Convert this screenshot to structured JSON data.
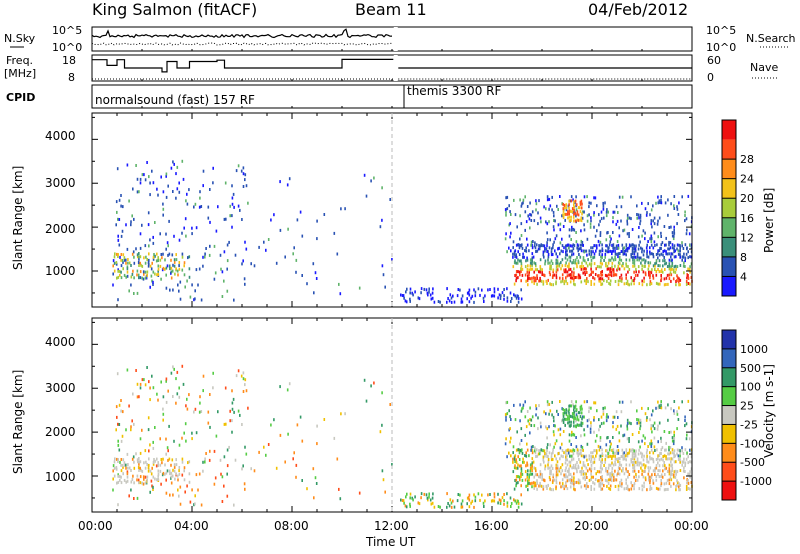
{
  "header": {
    "station": "King Salmon (fitACF)",
    "beam": "Beam 11",
    "date": "04/Feb/2012"
  },
  "aux_panels": {
    "nsky_label": "N.Sky",
    "nsky_ticks": [
      "10^5",
      "10^0"
    ],
    "nsearch_label": "N.Search",
    "nsearch_ticks": [
      "10^5",
      "10^0"
    ],
    "freq_label": "Freq.",
    "freq_unit": "[MHz]",
    "freq_ticks": [
      "18",
      "8"
    ],
    "nave_label": "Nave",
    "nave_ticks": [
      "60",
      "0"
    ],
    "cpid_label": "CPID",
    "cpid_segments": [
      {
        "label": "normalsound (fast) 157 RF",
        "start_hour": 0,
        "end_hour": 12.05
      },
      {
        "label": "themis 3300 RF",
        "start_hour": 12.25,
        "end_hour": 24
      }
    ],
    "freq_steps": [
      {
        "h": 0.0,
        "f": 16.2
      },
      {
        "h": 0.6,
        "f": 14.0
      },
      {
        "h": 1.0,
        "f": 16.2
      },
      {
        "h": 1.3,
        "f": 13.0
      },
      {
        "h": 2.8,
        "f": 11.5
      },
      {
        "h": 3.0,
        "f": 15.5
      },
      {
        "h": 3.4,
        "f": 13.0
      },
      {
        "h": 3.9,
        "f": 15.5
      },
      {
        "h": 5.0,
        "f": 16.0
      },
      {
        "h": 5.3,
        "f": 13.0
      },
      {
        "h": 10.0,
        "f": 16.3
      },
      {
        "h": 12.05,
        "f": null
      },
      {
        "h": 12.25,
        "f": 13.0
      },
      {
        "h": 24.0,
        "f": 13.0
      }
    ]
  },
  "panels": [
    {
      "id": "power",
      "ylabel": "Slant Range [km]",
      "yticks": [
        "1000",
        "2000",
        "3000",
        "4000"
      ],
      "colorbar_label": "Power [dB]",
      "colorbar_ticks": [
        "4",
        "8",
        "12",
        "16",
        "20",
        "24",
        "28"
      ],
      "colors": [
        "#1a1aff",
        "#2952b3",
        "#3a8f7a",
        "#5fb36a",
        "#a8cc3a",
        "#f2c21a",
        "#ff8c1a",
        "#ff4d1a",
        "#ee1010"
      ]
    },
    {
      "id": "velocity",
      "ylabel": "Slant Range [km]",
      "yticks": [
        "1000",
        "2000",
        "3000",
        "4000"
      ],
      "colorbar_label": "Velocity [m s-1]",
      "colorbar_ticks": [
        "1000",
        "500",
        "100",
        "25",
        "-25",
        "-100",
        "-500",
        "-1000"
      ],
      "colors": [
        "#2233aa",
        "#3366bb",
        "#339966",
        "#55cc44",
        "#c8c8c0",
        "#f0c000",
        "#ff8c1a",
        "#ff4d1a",
        "#ee1010"
      ]
    }
  ],
  "time_axis": {
    "label": "Time UT",
    "ticks": [
      "00:00",
      "04:00",
      "08:00",
      "12:00",
      "16:00",
      "20:00",
      "00:00"
    ]
  },
  "chart_data": {
    "type": "heatmap",
    "title": "King Salmon (fitACF)  Beam 11  04/Feb/2012",
    "x": {
      "label": "Time UT",
      "unit": "hour",
      "range": [
        0,
        24
      ]
    },
    "y": {
      "label": "Slant Range [km]",
      "range": [
        180,
        4600
      ]
    },
    "data_gap_hours": [
      12.05,
      12.25
    ],
    "scatter_regions": [
      {
        "name": "morning-mixed",
        "t": [
          0.8,
          6.2
        ],
        "r": [
          300,
          3500
        ],
        "density": 0.05
      },
      {
        "name": "morning-band",
        "t": [
          0.8,
          3.9
        ],
        "r": [
          800,
          1400
        ],
        "density": 0.3
      },
      {
        "name": "late-night-sparse",
        "t": [
          6.2,
          12.0
        ],
        "r": [
          300,
          3200
        ],
        "density": 0.012
      },
      {
        "name": "evening-E-region",
        "t": [
          12.3,
          17.2
        ],
        "r": [
          250,
          600
        ],
        "density": 0.25
      },
      {
        "name": "main-F-band",
        "t": [
          16.8,
          24
        ],
        "r": [
          650,
          1600
        ],
        "density": 0.45
      },
      {
        "name": "upper-band",
        "t": [
          16.5,
          24
        ],
        "r": [
          1400,
          2700
        ],
        "density": 0.15
      },
      {
        "name": "isolated-blob",
        "t": [
          18.8,
          19.6
        ],
        "r": [
          2100,
          2600
        ],
        "density": 0.6
      }
    ]
  }
}
